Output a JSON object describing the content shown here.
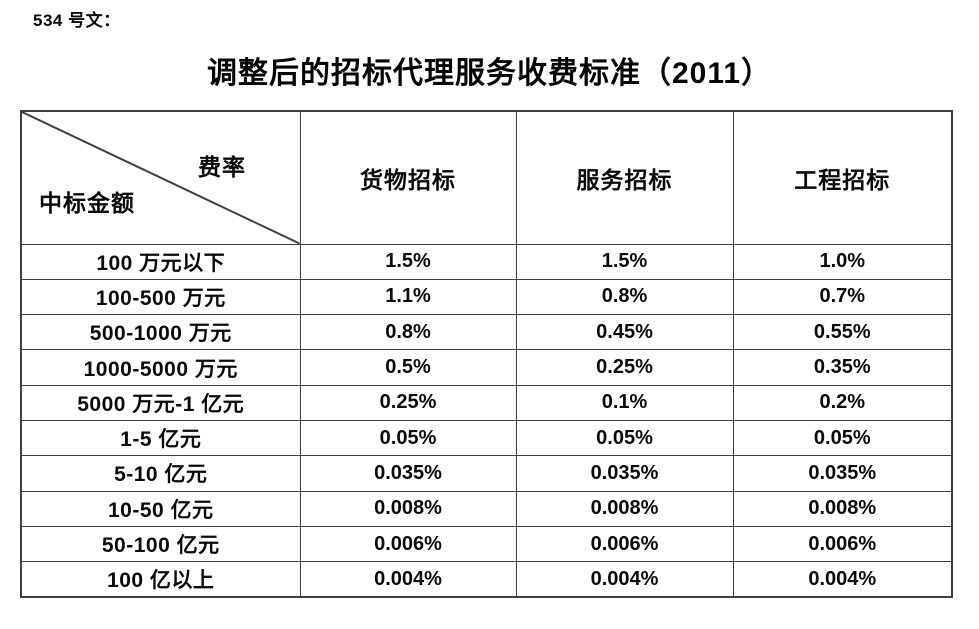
{
  "doc_label": "534 号文：",
  "title": "调整后的招标代理服务收费标准（2011）",
  "table": {
    "corner": {
      "top_right": "费率",
      "bottom_left": "中标金额"
    },
    "columns": [
      "货物招标",
      "服务招标",
      "工程招标"
    ],
    "rows": [
      {
        "amount_range": "100 万元以下",
        "rates": [
          "1.5%",
          "1.5%",
          "1.0%"
        ]
      },
      {
        "amount_range": "100-500 万元",
        "rates": [
          "1.1%",
          "0.8%",
          "0.7%"
        ]
      },
      {
        "amount_range": "500-1000 万元",
        "rates": [
          "0.8%",
          "0.45%",
          "0.55%"
        ]
      },
      {
        "amount_range": "1000-5000 万元",
        "rates": [
          "0.5%",
          "0.25%",
          "0.35%"
        ]
      },
      {
        "amount_range": "5000 万元-1 亿元",
        "rates": [
          "0.25%",
          "0.1%",
          "0.2%"
        ]
      },
      {
        "amount_range": "1-5 亿元",
        "rates": [
          "0.05%",
          "0.05%",
          "0.05%"
        ]
      },
      {
        "amount_range": "5-10 亿元",
        "rates": [
          "0.035%",
          "0.035%",
          "0.035%"
        ]
      },
      {
        "amount_range": "10-50 亿元",
        "rates": [
          "0.008%",
          "0.008%",
          "0.008%"
        ]
      },
      {
        "amount_range": "50-100 亿元",
        "rates": [
          "0.006%",
          "0.006%",
          "0.006%"
        ]
      },
      {
        "amount_range": "100 亿以上",
        "rates": [
          "0.004%",
          "0.004%",
          "0.004%"
        ]
      }
    ]
  },
  "colors": {
    "text": "#0a0a0a",
    "border": "#3f3f3f",
    "background": "#ffffff"
  }
}
